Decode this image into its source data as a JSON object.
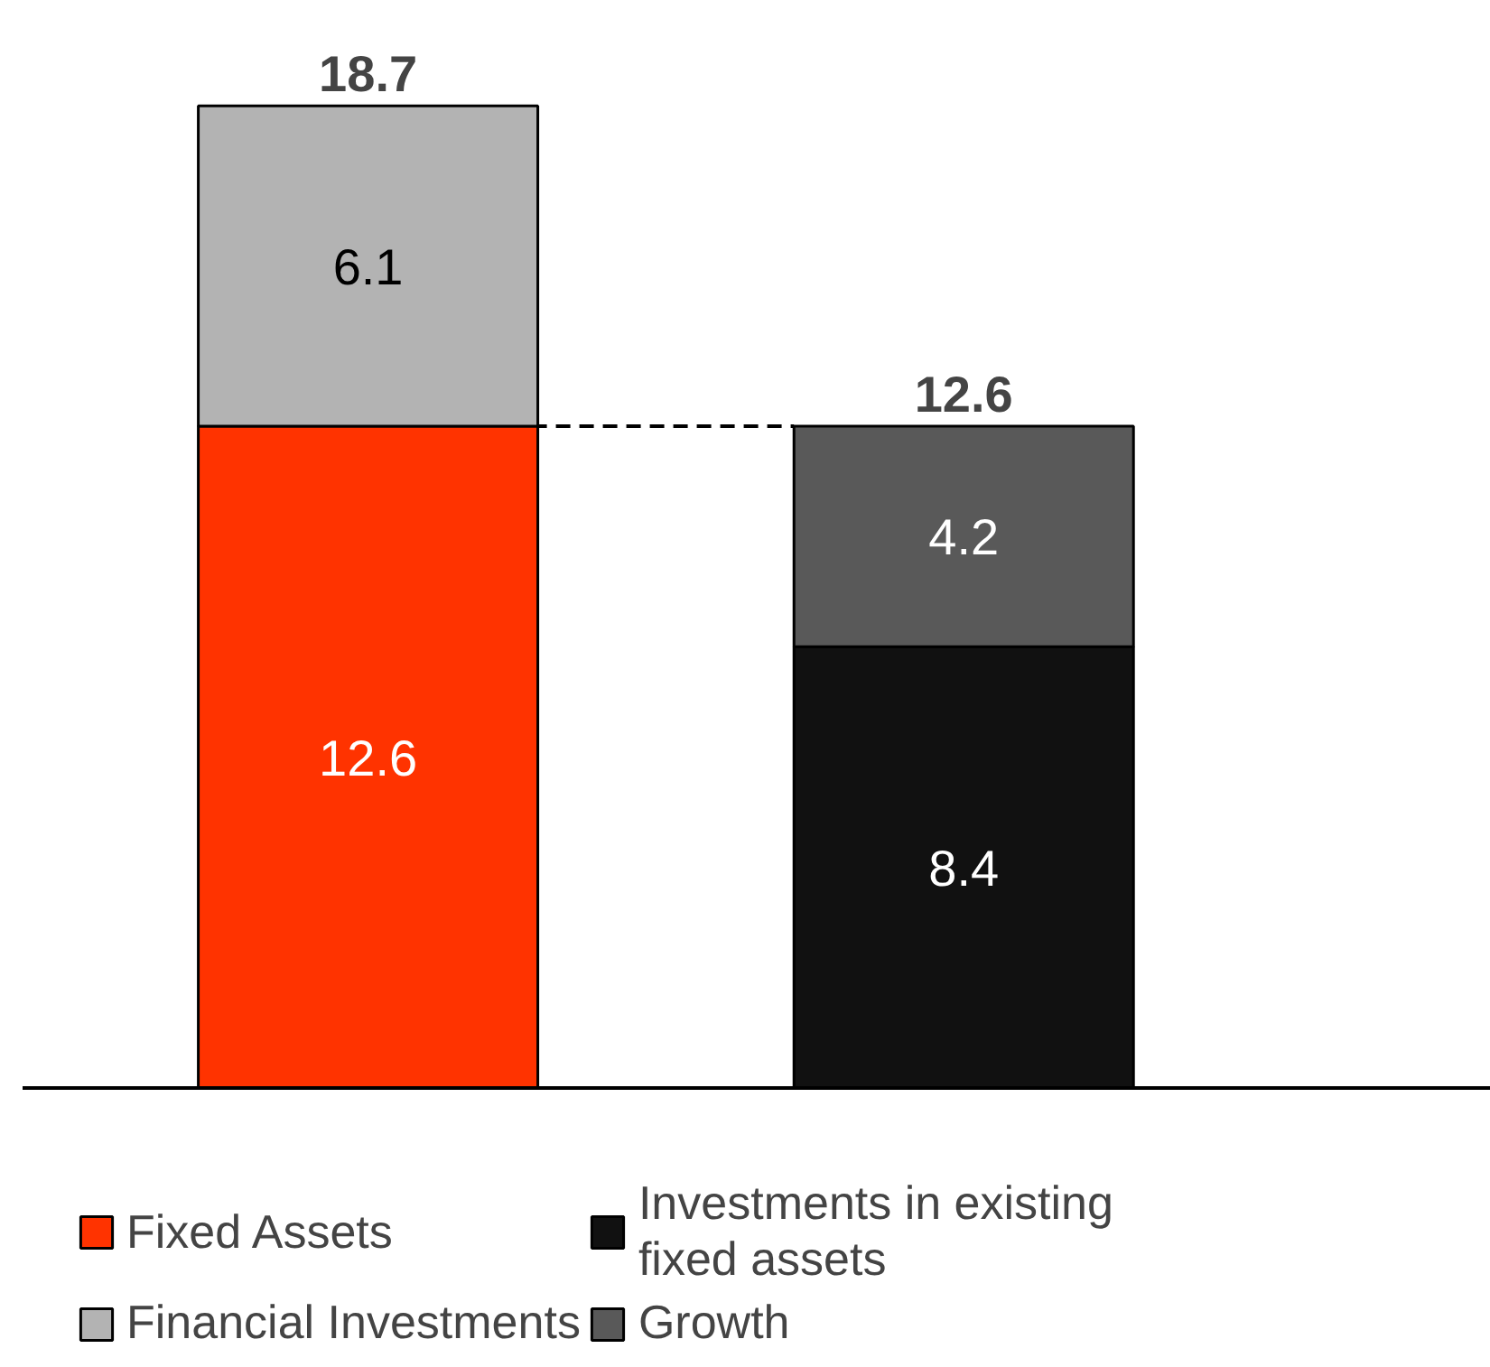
{
  "chart_data": {
    "type": "bar",
    "stacked": true,
    "categories": [
      null,
      null
    ],
    "series": [
      {
        "name": "Fixed Assets",
        "color": "#ff3300",
        "values": [
          12.6,
          null
        ]
      },
      {
        "name": "Financial Investments",
        "color": "#b3b3b3",
        "values": [
          6.1,
          null
        ]
      },
      {
        "name": "Investments in existing fixed assets",
        "color": "#111111",
        "values": [
          null,
          8.4
        ]
      },
      {
        "name": "Growth",
        "color": "#595959",
        "values": [
          null,
          4.2
        ]
      }
    ],
    "data_labels": true,
    "totals": [
      "18.7",
      "12.6"
    ],
    "ref_lines": [
      {
        "axis": "y",
        "value": 12.6,
        "line_style": "dashed",
        "color": "#000000"
      }
    ],
    "legend": "bottom",
    "grid": false
  }
}
